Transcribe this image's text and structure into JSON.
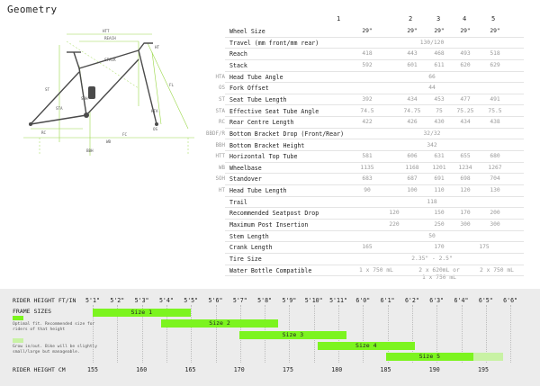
{
  "title": "Geometry",
  "sizes_header": [
    "1",
    "2",
    "3",
    "4",
    "5"
  ],
  "rows": [
    {
      "abbr": "",
      "label": "Wheel Size",
      "values": [
        "29\"",
        "29\"",
        "29\"",
        "29\"",
        "29\""
      ],
      "cls": "wheel"
    },
    {
      "abbr": "",
      "label": "Travel (mm front/mm rear)",
      "merged": "130/120"
    },
    {
      "abbr": "",
      "label": "Reach",
      "values": [
        "418",
        "443",
        "468",
        "493",
        "518"
      ]
    },
    {
      "abbr": "",
      "label": "Stack",
      "values": [
        "592",
        "601",
        "611",
        "620",
        "629"
      ]
    },
    {
      "abbr": "HTA",
      "label": "Head Tube Angle",
      "merged": "66"
    },
    {
      "abbr": "OS",
      "label": "Fork Offset",
      "merged": "44"
    },
    {
      "abbr": "ST",
      "label": "Seat Tube Length",
      "values": [
        "392",
        "434",
        "453",
        "477",
        "491"
      ]
    },
    {
      "abbr": "STA",
      "label": "Effective Seat Tube Angle",
      "values": [
        "74.5",
        "74.75",
        "75",
        "75.25",
        "75.5"
      ]
    },
    {
      "abbr": "RC",
      "label": "Rear Centre Length",
      "values": [
        "422",
        "426",
        "430",
        "434",
        "438"
      ]
    },
    {
      "abbr": "BBDF/R",
      "label": "Bottom Bracket Drop (Front/Rear)",
      "merged": "32/32"
    },
    {
      "abbr": "BBH",
      "label": "Bottom Bracket Height",
      "merged": "342"
    },
    {
      "abbr": "HTT",
      "label": "Horizontal Top Tube",
      "values": [
        "581",
        "606",
        "631",
        "655",
        "680"
      ]
    },
    {
      "abbr": "WB",
      "label": "Wheelbase",
      "values": [
        "1135",
        "1168",
        "1201",
        "1234",
        "1267"
      ]
    },
    {
      "abbr": "SOH",
      "label": "Standover",
      "values": [
        "683",
        "687",
        "691",
        "698",
        "704"
      ]
    },
    {
      "abbr": "HT",
      "label": "Head Tube Length",
      "values": [
        "90",
        "100",
        "110",
        "120",
        "130"
      ]
    },
    {
      "abbr": "",
      "label": "Trail",
      "merged": "118"
    },
    {
      "abbr": "",
      "label": "Recommended Seatpost Drop",
      "values": [
        "",
        "120",
        "150",
        "170",
        "200"
      ],
      "shift": true
    },
    {
      "abbr": "",
      "label": "Maximum Post Insertion",
      "values": [
        "",
        "220",
        "250",
        "300",
        "300"
      ],
      "shift": true
    },
    {
      "abbr": "",
      "label": "Stem Length",
      "merged": "50"
    },
    {
      "abbr": "",
      "label": "Crank Length",
      "cranks": [
        "165",
        "170",
        "175"
      ]
    },
    {
      "abbr": "",
      "label": "Tire Size",
      "merged": "2.35\" - 2.5\""
    },
    {
      "abbr": "",
      "label": "Water Bottle Compatible",
      "bottle": [
        "1 x 750 mL",
        "2 x 620mL or\n1 x 750 mL",
        "2 x 750 mL"
      ]
    }
  ],
  "rider": {
    "ftin_label": "RIDER HEIGHT FT/IN",
    "cm_label": "RIDER HEIGHT CM",
    "frame_sizes_label": "FRAME SIZES",
    "ftin": [
      "5'1\"",
      "5'2\"",
      "5'3\"",
      "5'4\"",
      "5'5\"",
      "5'6\"",
      "5'7\"",
      "5'8\"",
      "5'9\"",
      "5'10\"",
      "5'11\"",
      "6'0\"",
      "6'1\"",
      "6'2\"",
      "6'3\"",
      "6'4\"",
      "6'5\"",
      "6'6\""
    ],
    "cm": [
      "155",
      "160",
      "165",
      "170",
      "175",
      "180",
      "185",
      "190",
      "195"
    ],
    "legend_optimal": "Optimal fit. Recommended size for riders of that height",
    "legend_grow": "Grow in/out. Bike will be slightly small/large but manageable.",
    "bars": [
      {
        "label": "Size 1",
        "start_cm": 155,
        "end_cm": 165,
        "ext_cm": 0
      },
      {
        "label": "Size 2",
        "start_cm": 162,
        "end_cm": 174,
        "ext_cm": 0
      },
      {
        "label": "Size 3",
        "start_cm": 170,
        "end_cm": 181,
        "ext_cm": 0
      },
      {
        "label": "Size 4",
        "start_cm": 178,
        "end_cm": 188,
        "ext_cm": 0
      },
      {
        "label": "Size 5",
        "start_cm": 185,
        "end_cm": 194,
        "ext_cm": 3
      }
    ],
    "colors": {
      "optimal": "#7cf41f",
      "grow": "#c8f2a4"
    }
  },
  "diagram_labels": [
    "HTT",
    "REACH",
    "STACK",
    "HT",
    "ST",
    "STA",
    "SOH",
    "RC",
    "BBH",
    "WB",
    "FC",
    "HTA",
    "FL",
    "OS"
  ]
}
